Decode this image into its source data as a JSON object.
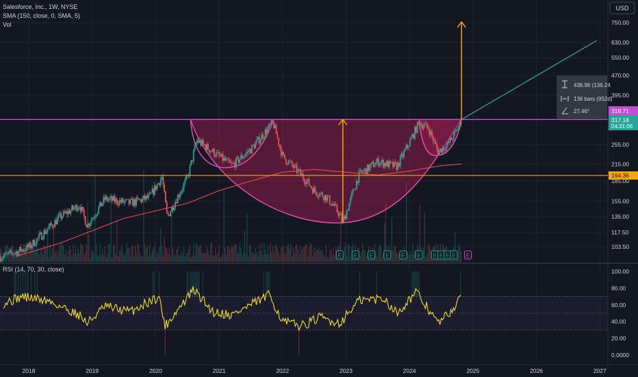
{
  "currency_button": "USD",
  "indicators": {
    "title": "Salesforce, Inc., 1W, NYSE",
    "sma": "SMA (150, close, 0, SMA, 5)",
    "vol": "Vol",
    "rsi": "RSI (14, 70, 30, close)"
  },
  "measure_box": {
    "price_change": "436.96 (136.24",
    "bars": "136 bars (952d)",
    "angle": "27.46°"
  },
  "price_labels": {
    "resistance": "318.71",
    "current": "317.18",
    "countdown": "04:31:06",
    "support": "194.36"
  },
  "earnings_marker": "E",
  "colors": {
    "background": "#131722",
    "up": "#26a69a",
    "down": "#ef5350",
    "sma": "#e0474c",
    "resistance": "#c64cd8",
    "support": "#f7a600",
    "target_arrow": "#f7a600",
    "trendline": "#2aa897",
    "cup_fill": "#8e1d4b",
    "rsi": "#f5e02a"
  },
  "chart_data": {
    "type": "candlestick",
    "title": "Salesforce, Inc., 1W, NYSE",
    "y_scale": "log",
    "x_ticks": [
      "2018",
      "2019",
      "2020",
      "2021",
      "2022",
      "2023",
      "2024",
      "2025",
      "2026",
      "2027"
    ],
    "y_ticks": [
      750.0,
      630.0,
      550.0,
      470.0,
      395.0,
      255.0,
      215.0,
      185.0,
      155.0,
      135.0,
      117.5,
      103.5
    ],
    "ylim": [
      95,
      800
    ],
    "price_path": [
      {
        "date": 2017.6,
        "price": 95
      },
      {
        "date": 2018.0,
        "price": 103
      },
      {
        "date": 2018.5,
        "price": 135
      },
      {
        "date": 2018.8,
        "price": 150
      },
      {
        "date": 2018.92,
        "price": 125
      },
      {
        "date": 2019.2,
        "price": 158
      },
      {
        "date": 2019.6,
        "price": 152
      },
      {
        "date": 2019.9,
        "price": 160
      },
      {
        "date": 2020.1,
        "price": 192
      },
      {
        "date": 2020.18,
        "price": 135
      },
      {
        "date": 2020.5,
        "price": 190
      },
      {
        "date": 2020.65,
        "price": 265
      },
      {
        "date": 2020.9,
        "price": 240
      },
      {
        "date": 2021.2,
        "price": 212
      },
      {
        "date": 2021.5,
        "price": 245
      },
      {
        "date": 2021.7,
        "price": 280
      },
      {
        "date": 2021.85,
        "price": 310
      },
      {
        "date": 2022.0,
        "price": 230
      },
      {
        "date": 2022.3,
        "price": 195
      },
      {
        "date": 2022.5,
        "price": 170
      },
      {
        "date": 2022.7,
        "price": 160
      },
      {
        "date": 2022.88,
        "price": 140
      },
      {
        "date": 2022.95,
        "price": 128
      },
      {
        "date": 2023.2,
        "price": 195
      },
      {
        "date": 2023.5,
        "price": 220
      },
      {
        "date": 2023.8,
        "price": 210
      },
      {
        "date": 2024.0,
        "price": 260
      },
      {
        "date": 2024.15,
        "price": 310
      },
      {
        "date": 2024.3,
        "price": 295
      },
      {
        "date": 2024.45,
        "price": 240
      },
      {
        "date": 2024.6,
        "price": 255
      },
      {
        "date": 2024.75,
        "price": 290
      },
      {
        "date": 2024.82,
        "price": 317
      }
    ],
    "sma_path": [
      {
        "date": 2017.8,
        "price": 95
      },
      {
        "date": 2018.5,
        "price": 107
      },
      {
        "date": 2019.5,
        "price": 133
      },
      {
        "date": 2020.5,
        "price": 152
      },
      {
        "date": 2021.0,
        "price": 170
      },
      {
        "date": 2021.5,
        "price": 185
      },
      {
        "date": 2022.0,
        "price": 200
      },
      {
        "date": 2022.5,
        "price": 205
      },
      {
        "date": 2023.0,
        "price": 200
      },
      {
        "date": 2023.5,
        "price": 195
      },
      {
        "date": 2024.0,
        "price": 202
      },
      {
        "date": 2024.5,
        "price": 212
      },
      {
        "date": 2024.82,
        "price": 215
      }
    ],
    "horizontal_lines": [
      {
        "price": 318.71
      },
      {
        "price": 194.36
      }
    ],
    "target_arrows": [
      {
        "date": 2022.95,
        "from": 128,
        "to": 318.71
      },
      {
        "date": 2024.82,
        "from": 318.71,
        "to": 755
      }
    ],
    "trendline": {
      "from": {
        "date": 2024.82,
        "price": 318.71
      },
      "to": {
        "date": 2026.95,
        "price": 640
      }
    },
    "cup_curves": [
      {
        "from": 2020.55,
        "bottom": 2022.95,
        "to": 2024.82
      },
      {
        "from": 2021.85,
        "bottom": 2022.95,
        "to": 2024.82
      }
    ],
    "earnings_dates": [
      2022.9,
      2023.15,
      2023.4,
      2023.65,
      2023.9,
      2024.15,
      2024.4,
      2024.5,
      2024.6,
      2024.7,
      2024.92
    ],
    "rsi": {
      "y_ticks": [
        100.0,
        80.0,
        60.0,
        40.0,
        20.0,
        0.0
      ],
      "ylim": [
        0,
        100
      ],
      "levels": [
        70,
        50,
        30
      ],
      "path": [
        {
          "date": 2017.6,
          "value": 62
        },
        {
          "date": 2017.9,
          "value": 70
        },
        {
          "date": 2018.3,
          "value": 65
        },
        {
          "date": 2018.8,
          "value": 48
        },
        {
          "date": 2018.92,
          "value": 38
        },
        {
          "date": 2019.2,
          "value": 58
        },
        {
          "date": 2019.6,
          "value": 52
        },
        {
          "date": 2020.05,
          "value": 70
        },
        {
          "date": 2020.15,
          "value": 35
        },
        {
          "date": 2020.6,
          "value": 78
        },
        {
          "date": 2020.9,
          "value": 52
        },
        {
          "date": 2021.2,
          "value": 48
        },
        {
          "date": 2021.8,
          "value": 72
        },
        {
          "date": 2022.0,
          "value": 40
        },
        {
          "date": 2022.3,
          "value": 35
        },
        {
          "date": 2022.6,
          "value": 45
        },
        {
          "date": 2022.9,
          "value": 38
        },
        {
          "date": 2023.2,
          "value": 65
        },
        {
          "date": 2023.6,
          "value": 68
        },
        {
          "date": 2023.8,
          "value": 50
        },
        {
          "date": 2024.1,
          "value": 75
        },
        {
          "date": 2024.3,
          "value": 55
        },
        {
          "date": 2024.45,
          "value": 38
        },
        {
          "date": 2024.6,
          "value": 48
        },
        {
          "date": 2024.82,
          "value": 68
        }
      ]
    }
  }
}
